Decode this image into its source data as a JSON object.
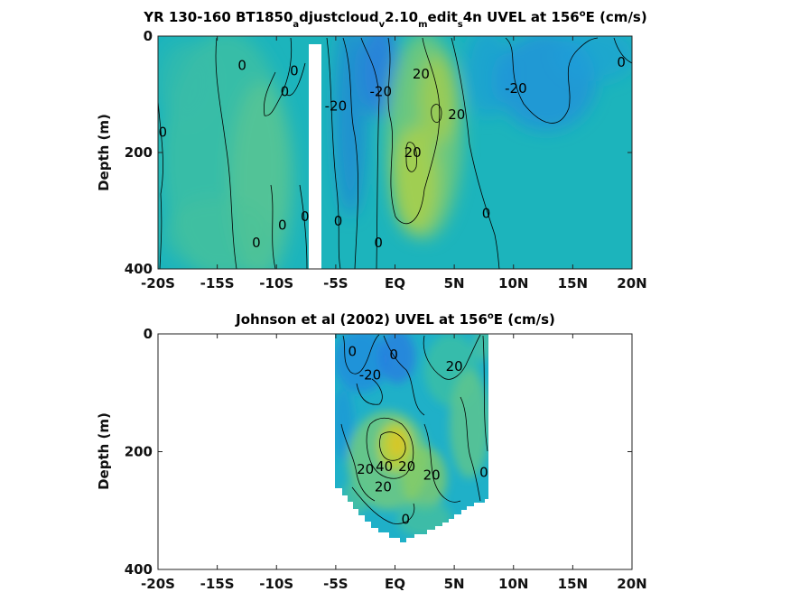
{
  "chart_data": [
    {
      "type": "heatmap",
      "title": "YR 130-160 BT1850_adjustcloud_v2.10_medit_s4n UVEL at 156°E (cm/s)",
      "title_parts": {
        "a": "YR 130-160 BT1850",
        "sub1": "a",
        "b": "djustcloud",
        "sub2": "v",
        "c": "2.10",
        "sub3": "m",
        "d": "edit",
        "sub4": "s",
        "e": "4n UVEL at 156",
        "sup": "o",
        "f": "E (cm/s)"
      },
      "ylabel": "Depth (m)",
      "xlim": [
        -20,
        20
      ],
      "ylim": [
        0,
        400
      ],
      "x_ticks": [
        -20,
        -15,
        -10,
        -5,
        0,
        5,
        10,
        15,
        20
      ],
      "x_tick_labels": [
        "-20S",
        "-15S",
        "-10S",
        "-5S",
        "EQ",
        "5N",
        "10N",
        "15N",
        "20N"
      ],
      "y_ticks": [
        0,
        200,
        400
      ],
      "y_tick_labels": [
        "0",
        "200",
        "400"
      ],
      "contour_labels": [
        {
          "text": "0",
          "x": -12.9,
          "y": 50
        },
        {
          "text": "0",
          "x": -8.5,
          "y": 60
        },
        {
          "text": "0",
          "x": -9.3,
          "y": 95
        },
        {
          "text": "0",
          "x": -19.6,
          "y": 165
        },
        {
          "text": "-20",
          "x": -5.0,
          "y": 120
        },
        {
          "text": "-20",
          "x": -1.2,
          "y": 95
        },
        {
          "text": "20",
          "x": 2.2,
          "y": 65
        },
        {
          "text": "20",
          "x": 5.2,
          "y": 135
        },
        {
          "text": "20",
          "x": 1.5,
          "y": 200
        },
        {
          "text": "-20",
          "x": 10.2,
          "y": 90
        },
        {
          "text": "0",
          "x": 19.1,
          "y": 45
        },
        {
          "text": "0",
          "x": -7.6,
          "y": 310
        },
        {
          "text": "0",
          "x": -9.5,
          "y": 325
        },
        {
          "text": "0",
          "x": -11.7,
          "y": 355
        },
        {
          "text": "0",
          "x": -4.8,
          "y": 318
        },
        {
          "text": "0",
          "x": -1.4,
          "y": 355
        },
        {
          "text": "0",
          "x": 7.7,
          "y": 305
        }
      ]
    },
    {
      "type": "heatmap",
      "title": "Johnson et al (2002) UVEL at 156°E (cm/s)",
      "title_parts": {
        "a": "Johnson et al (2002) UVEL at 156",
        "sup": "o",
        "b": "E (cm/s)"
      },
      "ylabel": "Depth (m)",
      "xlim": [
        -20,
        20
      ],
      "ylim": [
        0,
        400
      ],
      "x_ticks": [
        -20,
        -15,
        -10,
        -5,
        0,
        5,
        10,
        15,
        20
      ],
      "x_tick_labels": [
        "-20S",
        "-15S",
        "-10S",
        "-5S",
        "EQ",
        "5N",
        "10N",
        "15N",
        "20N"
      ],
      "y_ticks": [
        0,
        200,
        400
      ],
      "y_tick_labels": [
        "0",
        "200",
        "400"
      ],
      "data_extent_x": [
        -5,
        8
      ],
      "contour_labels": [
        {
          "text": "0",
          "x": -3.6,
          "y": 30
        },
        {
          "text": "-20",
          "x": -2.1,
          "y": 70
        },
        {
          "text": "0",
          "x": -0.1,
          "y": 35
        },
        {
          "text": "20",
          "x": 5.0,
          "y": 55
        },
        {
          "text": "20",
          "x": 1.0,
          "y": 225
        },
        {
          "text": "20",
          "x": -2.5,
          "y": 230
        },
        {
          "text": "40",
          "x": -0.9,
          "y": 225
        },
        {
          "text": "20",
          "x": -1.0,
          "y": 260
        },
        {
          "text": "20",
          "x": 3.1,
          "y": 240
        },
        {
          "text": "0",
          "x": 7.5,
          "y": 235
        },
        {
          "text": "0",
          "x": 0.9,
          "y": 315
        }
      ]
    }
  ]
}
